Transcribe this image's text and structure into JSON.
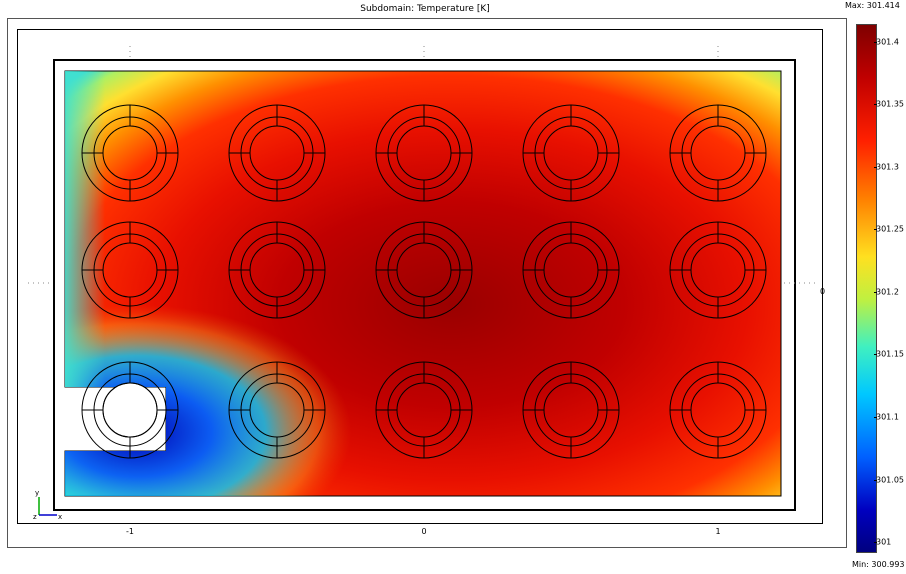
{
  "chart_data": {
    "type": "heatmap",
    "title": "Subdomain: Temperature [K]",
    "x_ticks": [
      "-1",
      "0",
      "1"
    ],
    "y_ticks": [
      "0"
    ],
    "colorbar": {
      "max_label": "Max: 301.414",
      "min_label": "Min: 300.993",
      "max": 301.414,
      "min": 300.993,
      "ticks": [
        "301.4",
        "301.35",
        "301.3",
        "301.25",
        "301.2",
        "301.15",
        "301.1",
        "301.05",
        "301"
      ]
    },
    "axes_triad": {
      "y": "y",
      "z": "z",
      "x": "x"
    },
    "grid": "off"
  }
}
